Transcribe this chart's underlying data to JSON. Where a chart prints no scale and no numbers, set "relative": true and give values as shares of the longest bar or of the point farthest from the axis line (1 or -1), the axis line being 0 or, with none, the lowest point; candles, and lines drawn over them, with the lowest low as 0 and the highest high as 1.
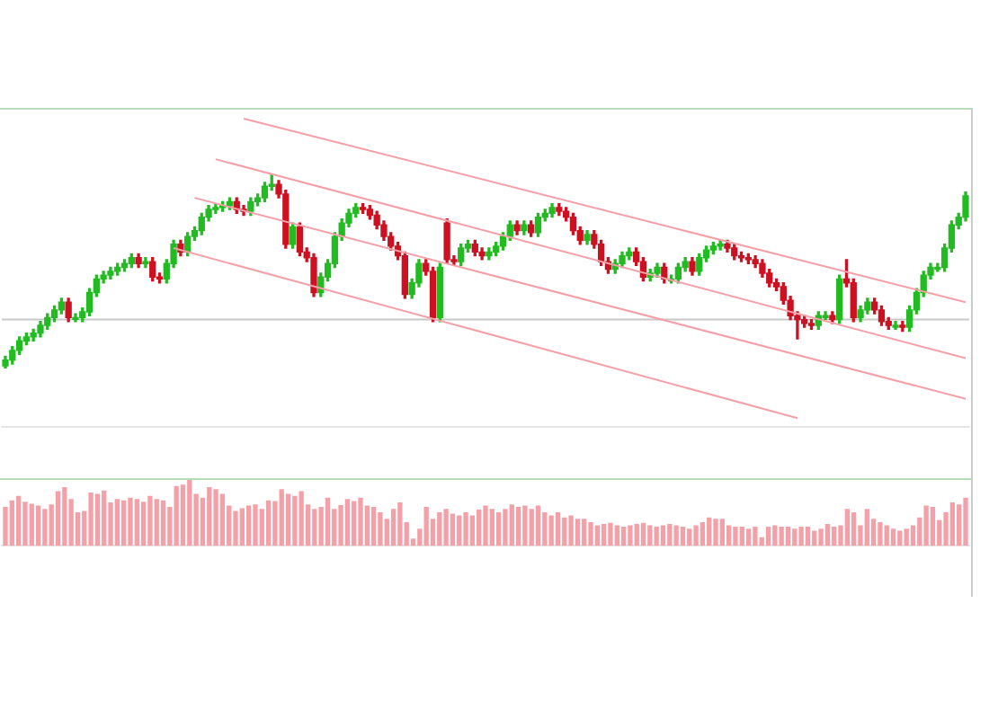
{
  "chart_data": [
    {
      "type": "candlestick",
      "relative": true,
      "legend": false,
      "grid": false,
      "categories": [
        null,
        null,
        null,
        null,
        null,
        null,
        null,
        null,
        null,
        null,
        null,
        null,
        null,
        null,
        null,
        null,
        null,
        null,
        null,
        null,
        null,
        null,
        null,
        null,
        null,
        null,
        null,
        null,
        null,
        null,
        null,
        null,
        null,
        null,
        null,
        null,
        null,
        null,
        null,
        null,
        null,
        null,
        null,
        null,
        null,
        null,
        null,
        null,
        null,
        null,
        null,
        null,
        null,
        null,
        null,
        null,
        null,
        null,
        null,
        null,
        null,
        null,
        null,
        null,
        null,
        null,
        null,
        null,
        null,
        null,
        null,
        null,
        null,
        null,
        null,
        null,
        null,
        null,
        null,
        null,
        null,
        null,
        null,
        null,
        null,
        null,
        null,
        null,
        null,
        null,
        null,
        null,
        null,
        null,
        null,
        null,
        null,
        null,
        null,
        null,
        null,
        null,
        null,
        null,
        null,
        null,
        null,
        null,
        null,
        null,
        null,
        null,
        null,
        null,
        null,
        null,
        null,
        null,
        null,
        null,
        null,
        null,
        null,
        null,
        null,
        null,
        null,
        null,
        null,
        null,
        null,
        null,
        null,
        null,
        null,
        null,
        null,
        null
      ],
      "ohlc": [
        [
          0.01,
          0.06,
          0,
          0.04
        ],
        [
          0.04,
          0.11,
          0.02,
          0.09
        ],
        [
          0.09,
          0.16,
          0.07,
          0.14
        ],
        [
          0.14,
          0.18,
          0.12,
          0.16
        ],
        [
          0.16,
          0.2,
          0.14,
          0.18
        ],
        [
          0.18,
          0.24,
          0.16,
          0.22
        ],
        [
          0.22,
          0.28,
          0.2,
          0.26
        ],
        [
          0.26,
          0.32,
          0.24,
          0.3
        ],
        [
          0.3,
          0.36,
          0.28,
          0.34
        ],
        [
          0.34,
          0.36,
          0.24,
          0.26
        ],
        [
          0.26,
          0.28,
          0.24,
          0.26
        ],
        [
          0.26,
          0.31,
          0.24,
          0.29
        ],
        [
          0.29,
          0.41,
          0.27,
          0.39
        ],
        [
          0.39,
          0.48,
          0.37,
          0.46
        ],
        [
          0.46,
          0.5,
          0.44,
          0.48
        ],
        [
          0.48,
          0.52,
          0.46,
          0.5
        ],
        [
          0.5,
          0.54,
          0.48,
          0.52
        ],
        [
          0.52,
          0.56,
          0.5,
          0.54
        ],
        [
          0.54,
          0.59,
          0.52,
          0.57
        ],
        [
          0.57,
          0.59,
          0.52,
          0.54
        ],
        [
          0.54,
          0.57,
          0.52,
          0.55
        ],
        [
          0.55,
          0.57,
          0.45,
          0.47
        ],
        [
          0.47,
          0.49,
          0.44,
          0.46
        ],
        [
          0.46,
          0.56,
          0.44,
          0.54
        ],
        [
          0.54,
          0.66,
          0.52,
          0.64
        ],
        [
          0.64,
          0.66,
          0.58,
          0.6
        ],
        [
          0.6,
          0.7,
          0.58,
          0.68
        ],
        [
          0.68,
          0.73,
          0.66,
          0.71
        ],
        [
          0.71,
          0.8,
          0.69,
          0.78
        ],
        [
          0.78,
          0.84,
          0.76,
          0.82
        ],
        [
          0.82,
          0.85,
          0.8,
          0.83
        ],
        [
          0.83,
          0.86,
          0.81,
          0.84
        ],
        [
          0.84,
          0.88,
          0.82,
          0.86
        ],
        [
          0.86,
          0.88,
          0.8,
          0.82
        ],
        [
          0.82,
          0.84,
          0.79,
          0.81
        ],
        [
          0.81,
          0.88,
          0.79,
          0.86
        ],
        [
          0.86,
          0.9,
          0.84,
          0.88
        ],
        [
          0.88,
          0.96,
          0.86,
          0.94
        ],
        [
          0.94,
          1,
          0.92,
          0.95
        ],
        [
          0.95,
          0.97,
          0.88,
          0.9
        ],
        [
          0.9,
          0.92,
          0.62,
          0.64
        ],
        [
          0.64,
          0.75,
          0.62,
          0.73
        ],
        [
          0.73,
          0.75,
          0.58,
          0.6
        ],
        [
          0.6,
          0.62,
          0.55,
          0.57
        ],
        [
          0.57,
          0.59,
          0.37,
          0.39
        ],
        [
          0.39,
          0.49,
          0.37,
          0.47
        ],
        [
          0.47,
          0.56,
          0.45,
          0.54
        ],
        [
          0.54,
          0.7,
          0.52,
          0.68
        ],
        [
          0.68,
          0.77,
          0.66,
          0.75
        ],
        [
          0.75,
          0.82,
          0.73,
          0.8
        ],
        [
          0.8,
          0.85,
          0.78,
          0.83
        ],
        [
          0.83,
          0.85,
          0.8,
          0.82
        ],
        [
          0.82,
          0.84,
          0.77,
          0.79
        ],
        [
          0.79,
          0.81,
          0.72,
          0.74
        ],
        [
          0.74,
          0.76,
          0.66,
          0.68
        ],
        [
          0.68,
          0.7,
          0.61,
          0.63
        ],
        [
          0.63,
          0.65,
          0.56,
          0.58
        ],
        [
          0.58,
          0.6,
          0.36,
          0.38
        ],
        [
          0.38,
          0.46,
          0.36,
          0.44
        ],
        [
          0.44,
          0.56,
          0.42,
          0.54
        ],
        [
          0.54,
          0.56,
          0.48,
          0.5
        ],
        [
          0.5,
          0.52,
          0.24,
          0.26
        ],
        [
          0.26,
          0.54,
          0.24,
          0.52
        ],
        [
          0.75,
          0.77,
          0.54,
          0.56
        ],
        [
          0.56,
          0.58,
          0.53,
          0.55
        ],
        [
          0.55,
          0.64,
          0.53,
          0.62
        ],
        [
          0.62,
          0.66,
          0.6,
          0.64
        ],
        [
          0.64,
          0.66,
          0.58,
          0.6
        ],
        [
          0.6,
          0.62,
          0.56,
          0.58
        ],
        [
          0.58,
          0.62,
          0.56,
          0.6
        ],
        [
          0.6,
          0.65,
          0.58,
          0.63
        ],
        [
          0.63,
          0.7,
          0.61,
          0.68
        ],
        [
          0.68,
          0.76,
          0.66,
          0.74
        ],
        [
          0.74,
          0.76,
          0.69,
          0.71
        ],
        [
          0.71,
          0.76,
          0.69,
          0.74
        ],
        [
          0.74,
          0.76,
          0.68,
          0.7
        ],
        [
          0.7,
          0.8,
          0.68,
          0.78
        ],
        [
          0.78,
          0.82,
          0.76,
          0.8
        ],
        [
          0.8,
          0.85,
          0.78,
          0.83
        ],
        [
          0.83,
          0.85,
          0.79,
          0.81
        ],
        [
          0.81,
          0.83,
          0.76,
          0.78
        ],
        [
          0.78,
          0.8,
          0.69,
          0.71
        ],
        [
          0.71,
          0.73,
          0.64,
          0.66
        ],
        [
          0.66,
          0.71,
          0.64,
          0.69
        ],
        [
          0.69,
          0.71,
          0.62,
          0.64
        ],
        [
          0.64,
          0.66,
          0.53,
          0.55
        ],
        [
          0.55,
          0.57,
          0.49,
          0.51
        ],
        [
          0.51,
          0.56,
          0.49,
          0.54
        ],
        [
          0.54,
          0.6,
          0.52,
          0.58
        ],
        [
          0.58,
          0.62,
          0.56,
          0.6
        ],
        [
          0.6,
          0.62,
          0.53,
          0.55
        ],
        [
          0.55,
          0.57,
          0.45,
          0.47
        ],
        [
          0.47,
          0.51,
          0.45,
          0.49
        ],
        [
          0.49,
          0.54,
          0.47,
          0.52
        ],
        [
          0.52,
          0.54,
          0.44,
          0.46
        ],
        [
          0.46,
          0.48,
          0.44,
          0.46
        ],
        [
          0.46,
          0.54,
          0.44,
          0.52
        ],
        [
          0.52,
          0.57,
          0.5,
          0.55
        ],
        [
          0.55,
          0.57,
          0.48,
          0.5
        ],
        [
          0.5,
          0.59,
          0.48,
          0.57
        ],
        [
          0.57,
          0.63,
          0.55,
          0.61
        ],
        [
          0.61,
          0.65,
          0.59,
          0.63
        ],
        [
          0.63,
          0.66,
          0.61,
          0.64
        ],
        [
          0.64,
          0.66,
          0.6,
          0.62
        ],
        [
          0.62,
          0.64,
          0.56,
          0.58
        ],
        [
          0.58,
          0.6,
          0.55,
          0.57
        ],
        [
          0.57,
          0.59,
          0.54,
          0.56
        ],
        [
          0.56,
          0.58,
          0.52,
          0.54
        ],
        [
          0.54,
          0.56,
          0.47,
          0.49
        ],
        [
          0.49,
          0.51,
          0.42,
          0.44
        ],
        [
          0.44,
          0.46,
          0.4,
          0.42
        ],
        [
          0.42,
          0.44,
          0.33,
          0.35
        ],
        [
          0.35,
          0.37,
          0.25,
          0.27
        ],
        [
          0.27,
          0.29,
          0.15,
          0.25
        ],
        [
          0.25,
          0.27,
          0.21,
          0.23
        ],
        [
          0.23,
          0.25,
          0.2,
          0.22
        ],
        [
          0.22,
          0.29,
          0.2,
          0.27
        ],
        [
          0.27,
          0.29,
          0.25,
          0.27
        ],
        [
          0.27,
          0.29,
          0.23,
          0.25
        ],
        [
          0.25,
          0.48,
          0.23,
          0.46
        ],
        [
          0.46,
          0.56,
          0.42,
          0.44
        ],
        [
          0.44,
          0.46,
          0.24,
          0.26
        ],
        [
          0.26,
          0.32,
          0.24,
          0.3
        ],
        [
          0.3,
          0.36,
          0.28,
          0.34
        ],
        [
          0.34,
          0.36,
          0.28,
          0.3
        ],
        [
          0.3,
          0.32,
          0.22,
          0.24
        ],
        [
          0.24,
          0.26,
          0.2,
          0.22
        ],
        [
          0.22,
          0.24,
          0.2,
          0.22
        ],
        [
          0.22,
          0.24,
          0.19,
          0.21
        ],
        [
          0.21,
          0.32,
          0.19,
          0.3
        ],
        [
          0.3,
          0.41,
          0.28,
          0.39
        ],
        [
          0.39,
          0.5,
          0.37,
          0.48
        ],
        [
          0.48,
          0.54,
          0.46,
          0.52
        ],
        [
          0.52,
          0.54,
          0.5,
          0.52
        ],
        [
          0.52,
          0.64,
          0.5,
          0.62
        ],
        [
          0.62,
          0.76,
          0.6,
          0.74
        ],
        [
          0.74,
          0.8,
          0.72,
          0.78
        ],
        [
          0.78,
          0.91,
          0.76,
          0.89
        ]
      ],
      "series": [
        {
          "type": "line",
          "color": "#f4a0a8",
          "values": [
            null,
            null,
            null,
            null,
            null,
            null,
            null,
            null,
            null,
            null,
            null,
            null,
            null,
            null,
            null,
            null,
            null,
            null,
            null,
            null,
            null,
            null,
            null,
            null,
            null,
            null,
            null,
            null,
            null,
            null,
            null,
            null,
            null,
            null,
            1.29,
            null,
            null,
            null,
            null,
            null,
            null,
            null,
            null,
            null,
            null,
            null,
            null,
            null,
            null,
            null,
            null,
            null,
            null,
            null,
            null,
            null,
            null,
            null,
            null,
            null,
            null,
            null,
            null,
            null,
            null,
            null,
            null,
            null,
            null,
            null,
            null,
            null,
            null,
            null,
            null,
            null,
            null,
            null,
            null,
            null,
            null,
            null,
            null,
            null,
            null,
            null,
            null,
            null,
            null,
            null,
            null,
            null,
            null,
            null,
            null,
            null,
            null,
            null,
            null,
            null,
            null,
            null,
            null,
            null,
            null,
            null,
            null,
            null,
            null,
            null,
            null,
            null,
            null,
            null,
            null,
            null,
            null,
            null,
            null,
            null,
            null,
            null,
            null,
            null,
            null,
            null,
            null,
            null,
            null,
            null,
            null,
            null,
            null,
            null,
            null,
            null,
            null,
            0.34
          ]
        },
        {
          "type": "line",
          "color": "#f4a0a8",
          "values": [
            null,
            null,
            null,
            null,
            null,
            null,
            null,
            null,
            null,
            null,
            null,
            null,
            null,
            null,
            null,
            null,
            null,
            null,
            null,
            null,
            null,
            null,
            null,
            null,
            null,
            null,
            null,
            null,
            null,
            null,
            1.08,
            null,
            null,
            null,
            null,
            null,
            null,
            null,
            null,
            null,
            null,
            null,
            null,
            null,
            null,
            null,
            null,
            null,
            null,
            null,
            null,
            null,
            null,
            null,
            null,
            null,
            null,
            null,
            null,
            null,
            null,
            null,
            null,
            null,
            null,
            null,
            null,
            null,
            null,
            null,
            null,
            null,
            null,
            null,
            null,
            null,
            null,
            null,
            null,
            null,
            null,
            null,
            null,
            null,
            null,
            null,
            null,
            null,
            null,
            null,
            null,
            null,
            null,
            null,
            null,
            null,
            null,
            null,
            null,
            null,
            null,
            null,
            null,
            null,
            null,
            null,
            null,
            null,
            null,
            null,
            null,
            null,
            null,
            null,
            null,
            null,
            null,
            null,
            null,
            null,
            null,
            null,
            null,
            null,
            null,
            null,
            null,
            null,
            null,
            null,
            null,
            null,
            null,
            null,
            null,
            null,
            null,
            0.05
          ]
        },
        {
          "type": "line",
          "color": "#f4a0a8",
          "values": [
            null,
            null,
            null,
            null,
            null,
            null,
            null,
            null,
            null,
            null,
            null,
            null,
            null,
            null,
            null,
            null,
            null,
            null,
            null,
            null,
            null,
            null,
            null,
            null,
            null,
            null,
            null,
            0.88,
            null,
            null,
            null,
            null,
            null,
            null,
            null,
            null,
            null,
            null,
            null,
            null,
            null,
            null,
            null,
            null,
            null,
            null,
            null,
            null,
            null,
            null,
            null,
            null,
            null,
            null,
            null,
            null,
            null,
            null,
            null,
            null,
            null,
            null,
            null,
            null,
            null,
            null,
            null,
            null,
            null,
            null,
            null,
            null,
            null,
            null,
            null,
            null,
            null,
            null,
            null,
            null,
            null,
            null,
            null,
            null,
            null,
            null,
            null,
            null,
            null,
            null,
            null,
            null,
            null,
            null,
            null,
            null,
            null,
            null,
            null,
            null,
            null,
            null,
            null,
            null,
            null,
            null,
            null,
            null,
            null,
            null,
            null,
            null,
            null,
            null,
            null,
            null,
            null,
            null,
            null,
            null,
            null,
            null,
            null,
            null,
            null,
            null,
            null,
            null,
            null,
            null,
            null,
            null,
            null,
            null,
            null,
            null,
            null,
            -0.16
          ]
        },
        {
          "type": "line",
          "color": "#f4a0a8",
          "values": [
            null,
            null,
            null,
            null,
            null,
            null,
            null,
            null,
            null,
            null,
            null,
            null,
            null,
            null,
            null,
            null,
            null,
            null,
            null,
            null,
            null,
            null,
            null,
            null,
            0.62,
            null,
            null,
            null,
            null,
            null,
            null,
            null,
            null,
            null,
            null,
            null,
            null,
            null,
            null,
            null,
            null,
            null,
            null,
            null,
            null,
            null,
            null,
            null,
            null,
            null,
            null,
            null,
            null,
            null,
            null,
            null,
            null,
            null,
            null,
            null,
            null,
            null,
            null,
            null,
            null,
            null,
            null,
            null,
            null,
            null,
            null,
            null,
            null,
            null,
            null,
            null,
            null,
            null,
            null,
            null,
            null,
            null,
            null,
            null,
            null,
            null,
            null,
            null,
            null,
            null,
            null,
            null,
            null,
            null,
            null,
            null,
            null,
            null,
            null,
            null,
            null,
            null,
            null,
            null,
            null,
            null,
            null,
            null,
            null,
            null,
            null,
            null,
            null,
            -0.26,
            null,
            null,
            null,
            null,
            null,
            null,
            null,
            null,
            null,
            null,
            null,
            null,
            null,
            null,
            null,
            null,
            null,
            null,
            null,
            null,
            null,
            null,
            null,
            null
          ]
        }
      ],
      "ref_lines": [
        {
          "axis": "y",
          "value": 0.25,
          "color": "#c8c8c8"
        }
      ]
    },
    {
      "type": "bar",
      "relative": true,
      "legend": false,
      "grid": false,
      "color": "#f4a0a8",
      "categories": [
        null,
        null,
        null,
        null,
        null,
        null,
        null,
        null,
        null,
        null,
        null,
        null,
        null,
        null,
        null,
        null,
        null,
        null,
        null,
        null,
        null,
        null,
        null,
        null,
        null,
        null,
        null,
        null,
        null,
        null,
        null,
        null,
        null,
        null,
        null,
        null,
        null,
        null,
        null,
        null,
        null,
        null,
        null,
        null,
        null,
        null,
        null,
        null,
        null,
        null,
        null,
        null,
        null,
        null,
        null,
        null,
        null,
        null,
        null,
        null,
        null,
        null,
        null,
        null,
        null,
        null,
        null,
        null,
        null,
        null,
        null,
        null,
        null,
        null,
        null,
        null,
        null,
        null,
        null,
        null,
        null,
        null,
        null,
        null,
        null,
        null,
        null,
        null,
        null,
        null,
        null,
        null,
        null,
        null,
        null,
        null,
        null,
        null,
        null,
        null,
        null,
        null,
        null,
        null,
        null,
        null,
        null,
        null,
        null,
        null,
        null,
        null,
        null,
        null,
        null,
        null,
        null,
        null,
        null,
        null,
        null,
        null,
        null,
        null,
        null,
        null,
        null,
        null,
        null,
        null,
        null,
        null,
        null,
        null,
        null,
        null,
        null,
        null,
        null,
        null,
        null,
        null,
        null,
        null,
        null,
        null,
        null
      ],
      "values": [
        0.58,
        0.68,
        0.75,
        0.66,
        0.63,
        0.6,
        0.55,
        0.62,
        0.82,
        0.88,
        0.7,
        0.5,
        0.52,
        0.8,
        0.78,
        0.83,
        0.65,
        0.7,
        0.68,
        0.72,
        0.7,
        0.66,
        0.75,
        0.7,
        0.68,
        0.58,
        0.9,
        0.92,
        1.0,
        0.78,
        0.72,
        0.88,
        0.85,
        0.78,
        0.6,
        0.52,
        0.56,
        0.6,
        0.62,
        0.55,
        0.68,
        0.67,
        0.85,
        0.78,
        0.75,
        0.82,
        0.62,
        0.55,
        0.58,
        0.72,
        0.55,
        0.61,
        0.7,
        0.67,
        0.72,
        0.6,
        0.58,
        0.5,
        0.4,
        0.55,
        0.65,
        0.35,
        0.1,
        0.25,
        0.58,
        0.4,
        0.5,
        0.55,
        0.48,
        0.45,
        0.5,
        0.45,
        0.54,
        0.6,
        0.55,
        0.5,
        0.55,
        0.62,
        0.58,
        0.6,
        0.55,
        0.6,
        0.5,
        0.45,
        0.5,
        0.42,
        0.45,
        0.4,
        0.4,
        0.35,
        0.3,
        0.32,
        0.34,
        0.3,
        0.28,
        0.3,
        0.32,
        0.34,
        0.3,
        0.28,
        0.3,
        0.32,
        0.3,
        0.28,
        0.25,
        0.3,
        0.35,
        0.42,
        0.4,
        0.4,
        0.3,
        0.28,
        0.28,
        0.25,
        0.28,
        0.12,
        0.28,
        0.3,
        0.28,
        0.28,
        0.25,
        0.28,
        0.28,
        0.22,
        0.25,
        0.32,
        0.28,
        0.3,
        0.55,
        0.5,
        0.3,
        0.55,
        0.4,
        0.35,
        0.3,
        0.25,
        0.22,
        0.25,
        0.3,
        0.42,
        0.6,
        0.58,
        0.38,
        0.5,
        0.65,
        0.62,
        0.72
      ]
    }
  ]
}
